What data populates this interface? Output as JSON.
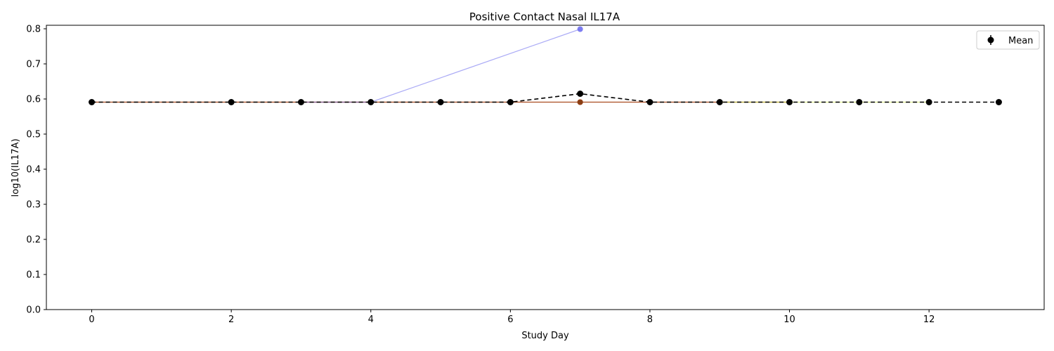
{
  "chart_data": {
    "type": "line",
    "title": "Positive Contact Nasal IL17A",
    "xlabel": "Study Day",
    "ylabel": "log10(IL17A)",
    "xlim": [
      -0.65,
      13.65
    ],
    "ylim": [
      0.0,
      0.81
    ],
    "xticks": [
      0,
      2,
      4,
      6,
      8,
      10,
      12
    ],
    "yticks": [
      0.0,
      0.1,
      0.2,
      0.3,
      0.4,
      0.5,
      0.6,
      0.7,
      0.8
    ],
    "grid": false,
    "legend": {
      "position": "top-right",
      "entries": [
        "Mean"
      ]
    },
    "series": [
      {
        "style": "individual",
        "color": "#e8a83a",
        "x": [
          0,
          2,
          3,
          4,
          5,
          6,
          7,
          8,
          9,
          10
        ],
        "y": [
          0.591,
          0.591,
          0.591,
          0.591,
          0.591,
          0.591,
          0.591,
          0.591,
          0.591,
          0.591
        ]
      },
      {
        "style": "individual",
        "color": "#d62728",
        "x": [
          0,
          2,
          3,
          4,
          5,
          6,
          7,
          8,
          9
        ],
        "y": [
          0.591,
          0.591,
          0.591,
          0.591,
          0.591,
          0.591,
          0.591,
          0.591,
          0.591
        ]
      },
      {
        "style": "individual",
        "color": "#7f3f10",
        "x": [
          0,
          2,
          3,
          4,
          5,
          6,
          7,
          8,
          9,
          10
        ],
        "y": [
          0.591,
          0.591,
          0.591,
          0.591,
          0.591,
          0.591,
          0.591,
          0.591,
          0.591,
          0.591
        ]
      },
      {
        "style": "individual",
        "color": "#c8e03a",
        "x": [
          9,
          10,
          11,
          12
        ],
        "y": [
          0.591,
          0.591,
          0.591,
          0.591
        ]
      },
      {
        "style": "individual",
        "color": "#6666ee",
        "x": [
          3,
          4,
          7
        ],
        "y": [
          0.591,
          0.591,
          0.799
        ]
      },
      {
        "style": "mean",
        "name": "Mean",
        "color": "#000000",
        "x": [
          0,
          2,
          3,
          4,
          5,
          6,
          7,
          8,
          9,
          10,
          11,
          12,
          13
        ],
        "y": [
          0.591,
          0.591,
          0.591,
          0.591,
          0.591,
          0.591,
          0.615,
          0.591,
          0.591,
          0.591,
          0.591,
          0.591,
          0.591
        ]
      }
    ]
  }
}
